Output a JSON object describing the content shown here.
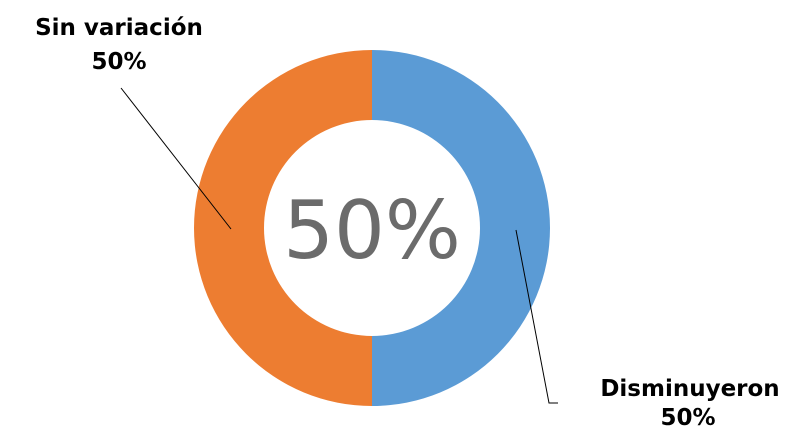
{
  "chart_data": {
    "type": "pie",
    "donut": true,
    "center_label": "50%",
    "slices": [
      {
        "label": "Disminuyeron",
        "value": 50,
        "value_label": "50%",
        "color": "#5b9bd5"
      },
      {
        "label": "Sin variación",
        "value": 50,
        "value_label": "50%",
        "color": "#ed7d31"
      }
    ],
    "legend": "none"
  }
}
